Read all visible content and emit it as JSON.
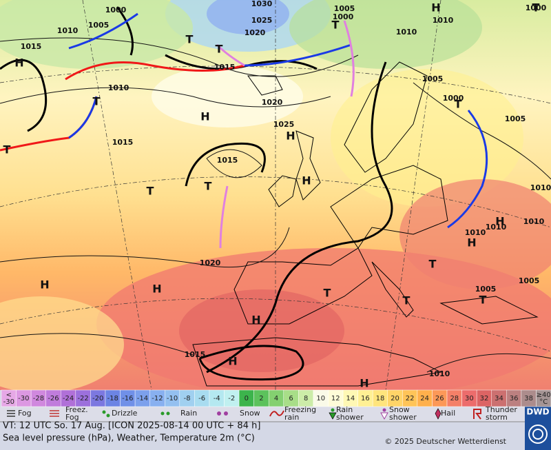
{
  "map": {
    "pressure_labels": [
      "1000",
      "1005",
      "1010",
      "1015",
      "1030",
      "1025",
      "1020",
      "1015",
      "1010",
      "1015",
      "1020",
      "1025",
      "1015",
      "1020",
      "1005",
      "1000",
      "1010",
      "1010",
      "1005",
      "1000",
      "1005",
      "1010",
      "1010",
      "1010",
      "1010",
      "1005",
      "1005",
      "1010",
      "1015",
      "1000"
    ],
    "systems": [
      "H",
      "T",
      "T",
      "T",
      "H",
      "T",
      "T",
      "H",
      "H",
      "H",
      "T",
      "T",
      "T",
      "H",
      "H",
      "T",
      "H",
      "H",
      "T",
      "H",
      "T",
      "H",
      "T",
      "T",
      "H"
    ]
  },
  "colorbar": [
    {
      "label": [
        "<",
        "-30"
      ],
      "color": "#e6a8e6"
    },
    {
      "label": [
        "-30"
      ],
      "color": "#dc98e2"
    },
    {
      "label": [
        "-28"
      ],
      "color": "#d088de"
    },
    {
      "label": [
        "-26"
      ],
      "color": "#c07cdc"
    },
    {
      "label": [
        "-24"
      ],
      "color": "#b070d8"
    },
    {
      "label": [
        "-22"
      ],
      "color": "#9c70dc"
    },
    {
      "label": [
        "-20"
      ],
      "color": "#7c78e0"
    },
    {
      "label": [
        "-18"
      ],
      "color": "#6c84e4"
    },
    {
      "label": [
        "-16"
      ],
      "color": "#7090e8"
    },
    {
      "label": [
        "-14"
      ],
      "color": "#7ca0ec"
    },
    {
      "label": [
        "-12"
      ],
      "color": "#88b0f0"
    },
    {
      "label": [
        "-10"
      ],
      "color": "#94c0f0"
    },
    {
      "label": [
        "-8"
      ],
      "color": "#a0d0f0"
    },
    {
      "label": [
        "-6"
      ],
      "color": "#a8dcf0"
    },
    {
      "label": [
        "-4"
      ],
      "color": "#b4e8f0"
    },
    {
      "label": [
        "-2"
      ],
      "color": "#c0f0f0"
    },
    {
      "label": [
        "0"
      ],
      "color": "#3cb44c"
    },
    {
      "label": [
        "2"
      ],
      "color": "#5cc25c"
    },
    {
      "label": [
        "4"
      ],
      "color": "#84d070"
    },
    {
      "label": [
        "6"
      ],
      "color": "#a8de88"
    },
    {
      "label": [
        "8"
      ],
      "color": "#cceca8"
    },
    {
      "label": [
        "10"
      ],
      "color": "#fafae8"
    },
    {
      "label": [
        "12"
      ],
      "color": "#fffcd8"
    },
    {
      "label": [
        "14"
      ],
      "color": "#fff8b4"
    },
    {
      "label": [
        "16"
      ],
      "color": "#fff094"
    },
    {
      "label": [
        "18"
      ],
      "color": "#ffe47c"
    },
    {
      "label": [
        "20"
      ],
      "color": "#ffd468"
    },
    {
      "label": [
        "22"
      ],
      "color": "#ffc458"
    },
    {
      "label": [
        "24"
      ],
      "color": "#ffb04c"
    },
    {
      "label": [
        "26"
      ],
      "color": "#fc9858"
    },
    {
      "label": [
        "28"
      ],
      "color": "#f48068"
    },
    {
      "label": [
        "30"
      ],
      "color": "#ec6c6c"
    },
    {
      "label": [
        "32"
      ],
      "color": "#dc6464"
    },
    {
      "label": [
        "34"
      ],
      "color": "#cc7070"
    },
    {
      "label": [
        "36"
      ],
      "color": "#bc8080"
    },
    {
      "label": [
        "38"
      ],
      "color": "#ac8c8c"
    },
    {
      "label": [
        "≥40",
        "°C"
      ],
      "color": "#a49494"
    }
  ],
  "legend": [
    {
      "lines": [
        "Fog"
      ]
    },
    {
      "lines": [
        "Freez.",
        "Fog"
      ]
    },
    {
      "lines": [
        "Drizzle"
      ]
    },
    {
      "lines": [
        "Rain"
      ]
    },
    {
      "lines": [
        "Snow"
      ]
    },
    {
      "lines": [
        "Freezing",
        "rain"
      ]
    },
    {
      "lines": [
        "Rain",
        "shower"
      ]
    },
    {
      "lines": [
        "Snow",
        "shower"
      ]
    },
    {
      "lines": [
        "Hail"
      ]
    },
    {
      "lines": [
        "Thunder",
        "storm"
      ]
    }
  ],
  "footer": {
    "valid_time": "VT: 12 UTC So.  17 Aug. [ICON 2025-08-14  00 UTC + 84 h]",
    "description": "Sea level pressure (hPa), Weather, Temperature 2m (°C)",
    "copyright": "© 2025 Deutscher Wetterdienst",
    "logo": "DWD"
  }
}
